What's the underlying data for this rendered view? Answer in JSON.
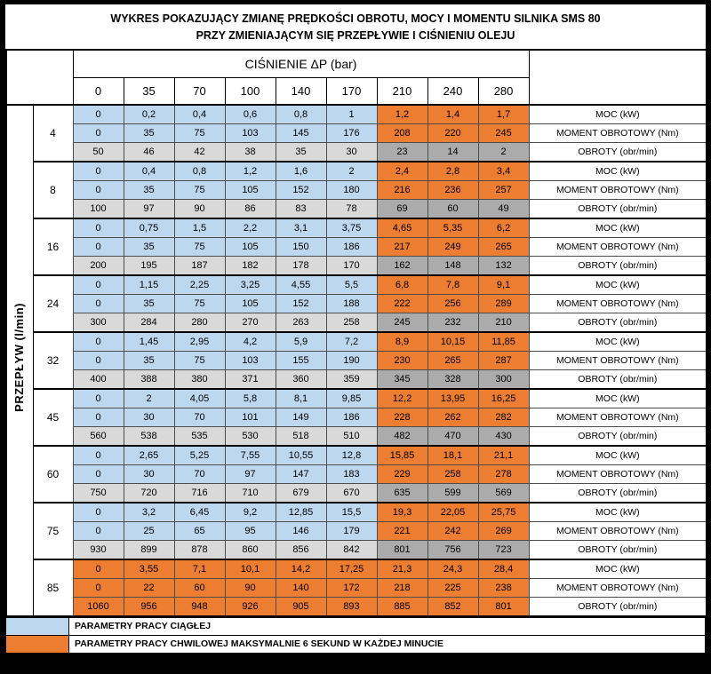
{
  "title": {
    "line1": "WYKRES POKAZUJĄCY ZMIANĘ PRĘDKOŚCI OBROTU, MOCY I MOMENTU SILNIKA SMS 80",
    "line2": "PRZY ZMIENIAJĄCYM SIĘ PRZEPŁYWIE I CIŚNIENIU OLEJU"
  },
  "chart_data": {
    "type": "table",
    "title": "WYKRES POKAZUJĄCY ZMIANĘ PRĘDKOŚCI OBROTU, MOCY I MOMENTU SILNIKA SMS 80 PRZY ZMIENIAJĄCYM SIĘ PRZEPŁYWIE I CIŚNIENIU OLEJU",
    "column_header": "CIŚNIENIE ΔP (bar)",
    "pressures": [
      "0",
      "35",
      "70",
      "100",
      "140",
      "170",
      "210",
      "240",
      "280"
    ],
    "row_axis_label": "PRZEPŁYW (l/min)",
    "row_labels": [
      "MOC (kW)",
      "MOMENT OBROTOWY (Nm)",
      "OBROTY (obr/min)"
    ],
    "groups": [
      {
        "flow": "4",
        "moc": [
          "0",
          "0,2",
          "0,4",
          "0,6",
          "0,8",
          "1",
          "1,2",
          "1,4",
          "1,7"
        ],
        "moment": [
          "0",
          "35",
          "75",
          "103",
          "145",
          "176",
          "208",
          "220",
          "245"
        ],
        "obroty": [
          "50",
          "46",
          "42",
          "38",
          "35",
          "30",
          "23",
          "14",
          "2"
        ]
      },
      {
        "flow": "8",
        "moc": [
          "0",
          "0,4",
          "0,8",
          "1,2",
          "1,6",
          "2",
          "2,4",
          "2,8",
          "3,4"
        ],
        "moment": [
          "0",
          "35",
          "75",
          "105",
          "152",
          "180",
          "216",
          "236",
          "257"
        ],
        "obroty": [
          "100",
          "97",
          "90",
          "86",
          "83",
          "78",
          "69",
          "60",
          "49"
        ]
      },
      {
        "flow": "16",
        "moc": [
          "0",
          "0,75",
          "1,5",
          "2,2",
          "3,1",
          "3,75",
          "4,65",
          "5,35",
          "6,2"
        ],
        "moment": [
          "0",
          "35",
          "75",
          "105",
          "150",
          "186",
          "217",
          "249",
          "265"
        ],
        "obroty": [
          "200",
          "195",
          "187",
          "182",
          "178",
          "170",
          "162",
          "148",
          "132"
        ]
      },
      {
        "flow": "24",
        "moc": [
          "0",
          "1,15",
          "2,25",
          "3,25",
          "4,55",
          "5,5",
          "6,8",
          "7,8",
          "9,1"
        ],
        "moment": [
          "0",
          "35",
          "75",
          "105",
          "152",
          "188",
          "222",
          "256",
          "289"
        ],
        "obroty": [
          "300",
          "284",
          "280",
          "270",
          "263",
          "258",
          "245",
          "232",
          "210"
        ]
      },
      {
        "flow": "32",
        "moc": [
          "0",
          "1,45",
          "2,95",
          "4,2",
          "5,9",
          "7,2",
          "8,9",
          "10,15",
          "11,85"
        ],
        "moment": [
          "0",
          "35",
          "75",
          "103",
          "155",
          "190",
          "230",
          "265",
          "287"
        ],
        "obroty": [
          "400",
          "388",
          "380",
          "371",
          "360",
          "359",
          "345",
          "328",
          "300"
        ]
      },
      {
        "flow": "45",
        "moc": [
          "0",
          "2",
          "4,05",
          "5,8",
          "8,1",
          "9,85",
          "12,2",
          "13,95",
          "16,25"
        ],
        "moment": [
          "0",
          "30",
          "70",
          "101",
          "149",
          "186",
          "228",
          "262",
          "282"
        ],
        "obroty": [
          "560",
          "538",
          "535",
          "530",
          "518",
          "510",
          "482",
          "470",
          "430"
        ]
      },
      {
        "flow": "60",
        "moc": [
          "0",
          "2,65",
          "5,25",
          "7,55",
          "10,55",
          "12,8",
          "15,85",
          "18,1",
          "21,1"
        ],
        "moment": [
          "0",
          "30",
          "70",
          "97",
          "147",
          "183",
          "229",
          "258",
          "278"
        ],
        "obroty": [
          "750",
          "720",
          "716",
          "710",
          "679",
          "670",
          "635",
          "599",
          "569"
        ]
      },
      {
        "flow": "75",
        "moc": [
          "0",
          "3,2",
          "6,45",
          "9,2",
          "12,85",
          "15,5",
          "19,3",
          "22,05",
          "25,75"
        ],
        "moment": [
          "0",
          "25",
          "65",
          "95",
          "146",
          "179",
          "221",
          "242",
          "269"
        ],
        "obroty": [
          "930",
          "899",
          "878",
          "860",
          "856",
          "842",
          "801",
          "756",
          "723"
        ]
      },
      {
        "flow": "85",
        "moc": [
          "0",
          "3,55",
          "7,1",
          "10,1",
          "14,2",
          "17,25",
          "21,3",
          "24,3",
          "28,4"
        ],
        "moment": [
          "0",
          "22",
          "60",
          "90",
          "140",
          "172",
          "218",
          "225",
          "238"
        ],
        "obroty": [
          "1060",
          "956",
          "948",
          "926",
          "905",
          "893",
          "885",
          "852",
          "801"
        ]
      }
    ]
  },
  "legend": [
    {
      "label": "PARAMETRY PRACY CIĄGŁEJ",
      "color": "#bdd7ee"
    },
    {
      "label": "PARAMETRY PRACY CHWILOWEJ MAKSYMALNIE 6 SEKUND W KAŻDEJ MINUCIE",
      "color": "#ed7d31"
    }
  ],
  "colors": {
    "continuous": "#bdd7ee",
    "momentary": "#ed7d31",
    "rpm": "#d9d9d9",
    "rpm_over": "#ababab",
    "frame": "#000000"
  }
}
